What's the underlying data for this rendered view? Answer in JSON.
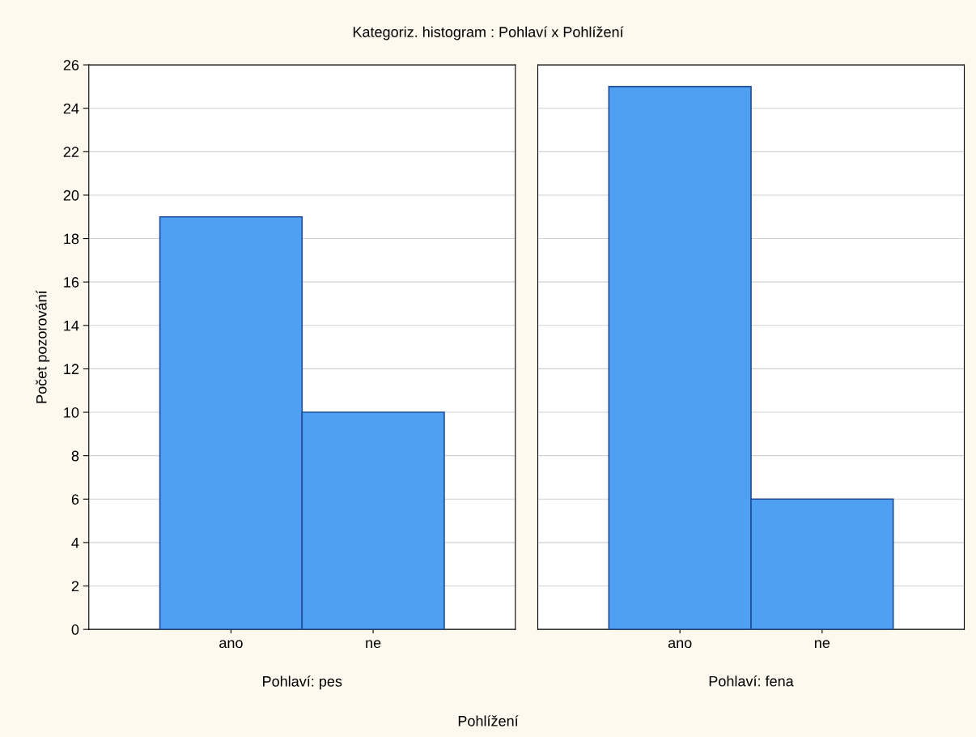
{
  "chart_data": [
    {
      "type": "bar",
      "title": "Kategoriz. histogram : Pohlaví x Pohlížení",
      "xlabel": "Pohlaví: pes",
      "ylabel": "Počet pozorování",
      "annotations": [
        "Pohlížení"
      ],
      "categories": [
        "ano",
        "ne"
      ],
      "values": [
        19,
        10
      ],
      "color": "#4f9ff2",
      "ylim": [
        0,
        26
      ],
      "yticks": [
        0,
        2,
        4,
        6,
        8,
        10,
        12,
        14,
        16,
        18,
        20,
        22,
        24,
        26
      ],
      "grid": "y"
    },
    {
      "type": "bar",
      "xlabel": "Pohlaví: fena",
      "categories": [
        "ano",
        "ne"
      ],
      "values": [
        25,
        6
      ],
      "color": "#4f9ff2",
      "ylim": [
        0,
        26
      ],
      "yticks": [
        0,
        2,
        4,
        6,
        8,
        10,
        12,
        14,
        16,
        18,
        20,
        22,
        24,
        26
      ],
      "grid": "y",
      "tick_labels": "x"
    }
  ]
}
